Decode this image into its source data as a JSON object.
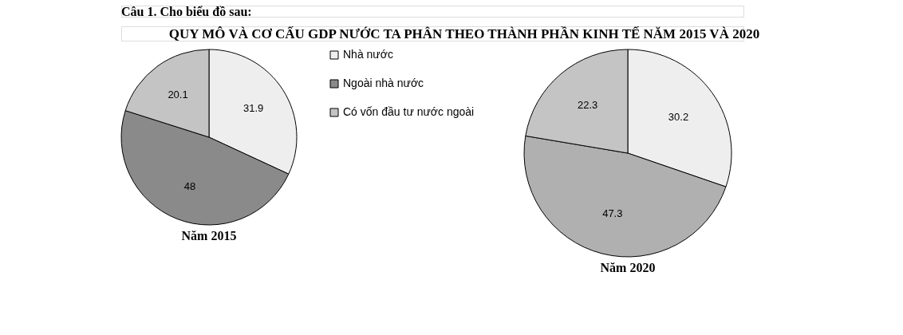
{
  "chart_data": {
    "type": "pie",
    "title": "QUY MÔ VÀ CƠ CẤU GDP NƯỚC TA PHÂN THEO THÀNH PHẦN KINH TẾ NĂM 2015 VÀ 2020",
    "annotations": [
      "Câu 1. Cho biểu đồ sau:"
    ],
    "categories": [
      "Nhà nước",
      "Ngoài nhà nước",
      "Có vốn đầu tư nước ngoài"
    ],
    "data_labels": true,
    "legend": "right",
    "series": [
      {
        "name": "Năm 2015",
        "values": [
          31.9,
          48,
          20.1
        ],
        "colors": [
          "#eeeeee",
          "#8a8a8a",
          "#c4c4c4"
        ]
      },
      {
        "name": "Năm 2020",
        "values": [
          30.2,
          47.3,
          22.3
        ],
        "colors": [
          "#eeeeee",
          "#b0b0b0",
          "#c4c4c4"
        ]
      }
    ]
  }
}
